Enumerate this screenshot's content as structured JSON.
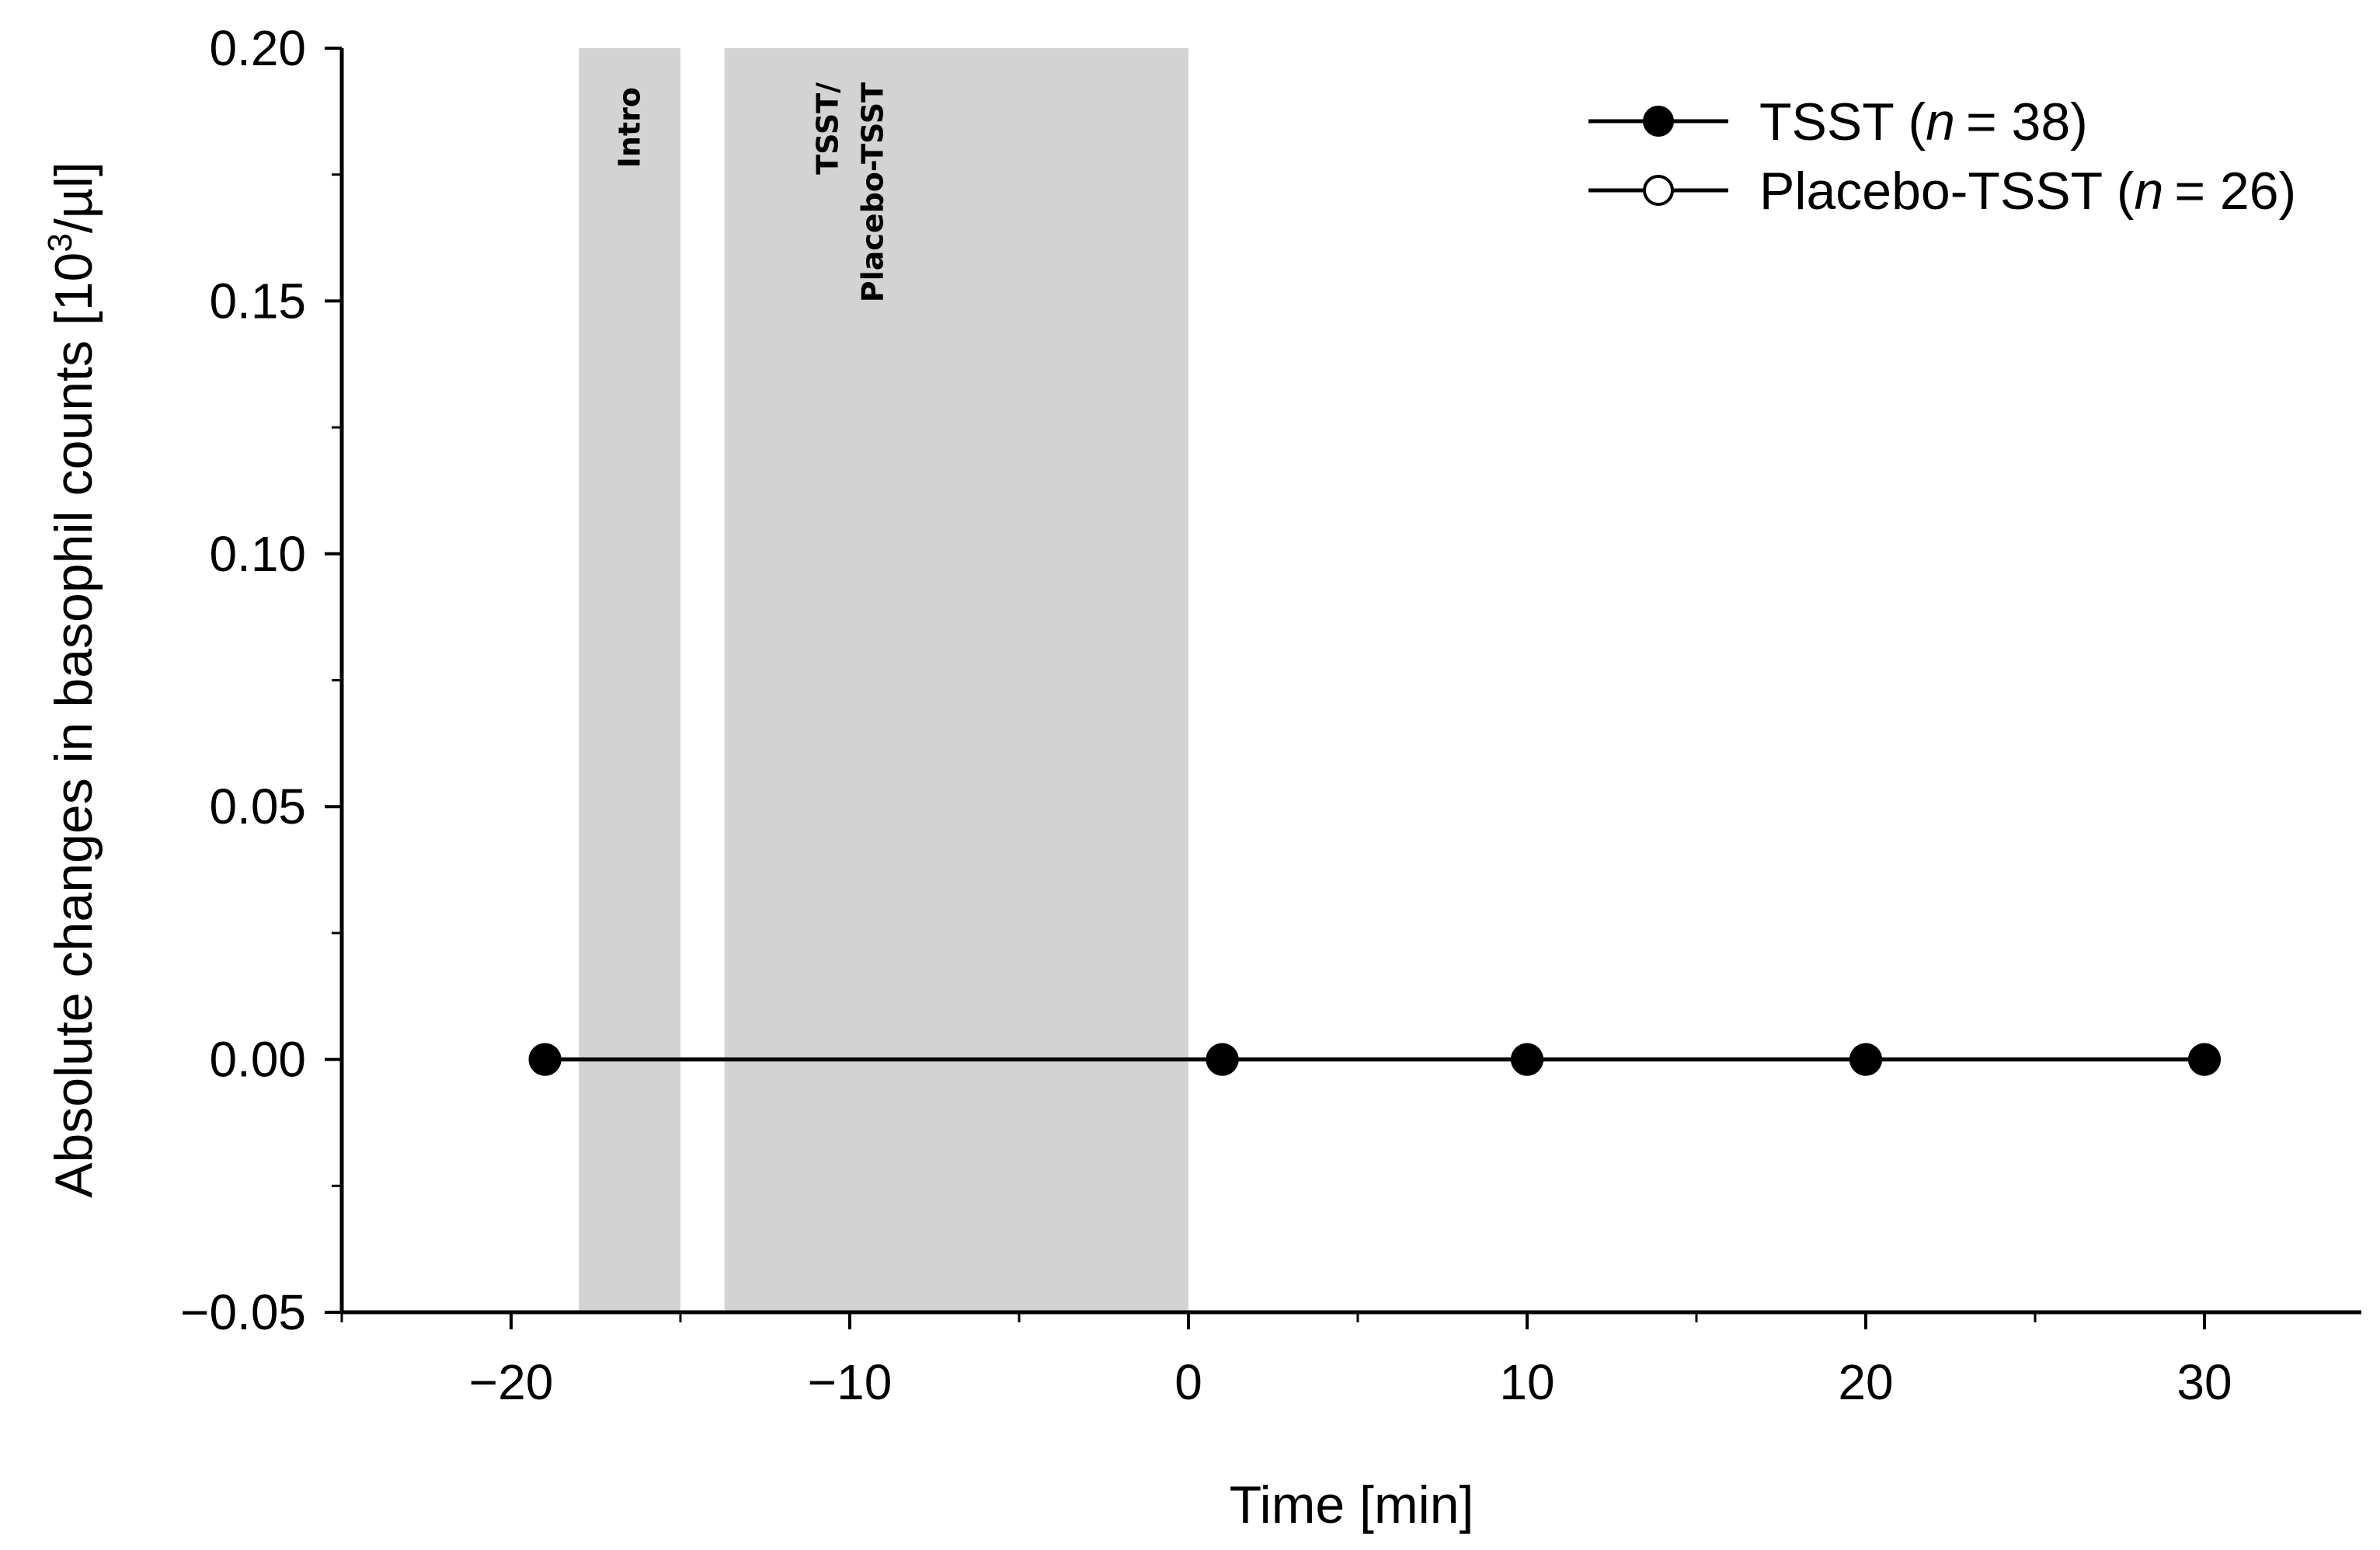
{
  "chart_data": {
    "type": "line",
    "xlabel": "Time [min]",
    "ylabel": {
      "prefix": "Absolute changes in basophil counts [10",
      "sup": "3",
      "suffix": "/µl]"
    },
    "xlim": [
      -25,
      35
    ],
    "ylim": [
      -0.05,
      0.2
    ],
    "x_ticks": [
      -20,
      -10,
      0,
      10,
      20,
      30
    ],
    "x_tick_labels": [
      "−20",
      "−10",
      "0",
      "10",
      "20",
      "30"
    ],
    "x_minor_step": 5,
    "y_ticks": [
      -0.05,
      0.0,
      0.05,
      0.1,
      0.15,
      0.2
    ],
    "y_tick_labels": [
      "−0.05",
      "0.00",
      "0.05",
      "0.10",
      "0.15",
      "0.20"
    ],
    "y_minor_step": 0.025,
    "grid": false,
    "legend_position": "top-right",
    "phases": [
      {
        "label": "Intro",
        "x_start": -18,
        "x_end": -15,
        "color": "#d3d3d3"
      },
      {
        "label_lines": [
          "TSST/",
          "Placebo-TSST"
        ],
        "x_start": -13.7,
        "x_end": 0,
        "color": "#d3d3d3"
      }
    ],
    "series": [
      {
        "name": "TSST",
        "n_label": "n",
        "n_value": "= 38)",
        "marker": "filled",
        "color": "#000000",
        "x": [
          -19,
          1,
          10,
          20,
          30
        ],
        "y": [
          0.0,
          0.0,
          0.0,
          0.0,
          0.0
        ]
      },
      {
        "name": "Placebo-TSST",
        "n_label": "n",
        "n_value": "= 26)",
        "marker": "open",
        "color": "#000000",
        "x": [
          -19,
          1,
          10,
          20,
          30
        ],
        "y": [
          0.0,
          0.0,
          0.0,
          0.0,
          0.0
        ]
      }
    ]
  }
}
